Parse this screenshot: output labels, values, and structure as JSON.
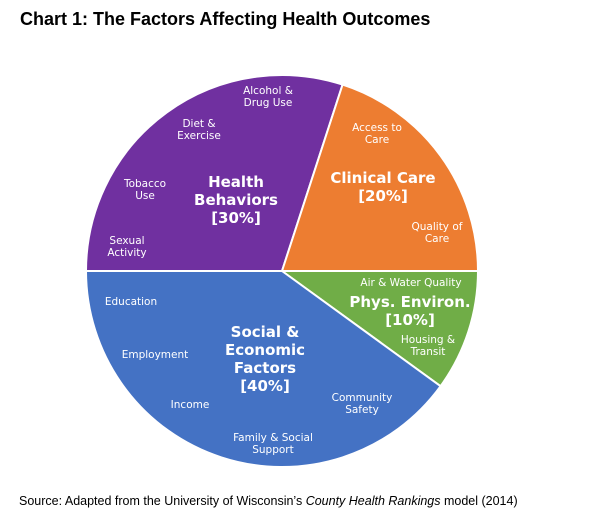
{
  "chart_data": {
    "type": "pie",
    "title": "Chart 1: The Factors Affecting Health Outcomes",
    "categories": [
      "Health Behaviors",
      "Clinical Care",
      "Phys. Environ.",
      "Social & Economic Factors"
    ],
    "values": [
      30,
      20,
      10,
      40
    ],
    "value_labels": [
      "[30%]",
      "[20%]",
      "[10%]",
      "[40%]"
    ],
    "colors": [
      "#7030a0",
      "#ed7d31",
      "#70ad47",
      "#4472c4"
    ],
    "factors": [
      [
        "Alcohol & Drug Use",
        "Diet & Exercise",
        "Tobacco Use",
        "Sexual Activity"
      ],
      [
        "Access to Care",
        "Quality of Care"
      ],
      [
        "Air & Water Quality",
        "Housing & Transit"
      ],
      [
        "Education",
        "Employment",
        "Income",
        "Family & Social Support",
        "Community Safety"
      ]
    ],
    "source": {
      "prefix": "Source: Adapted from the University of Wisconsin’s ",
      "emphasis": "County Health Rankings",
      "suffix": " model (2014)"
    }
  }
}
